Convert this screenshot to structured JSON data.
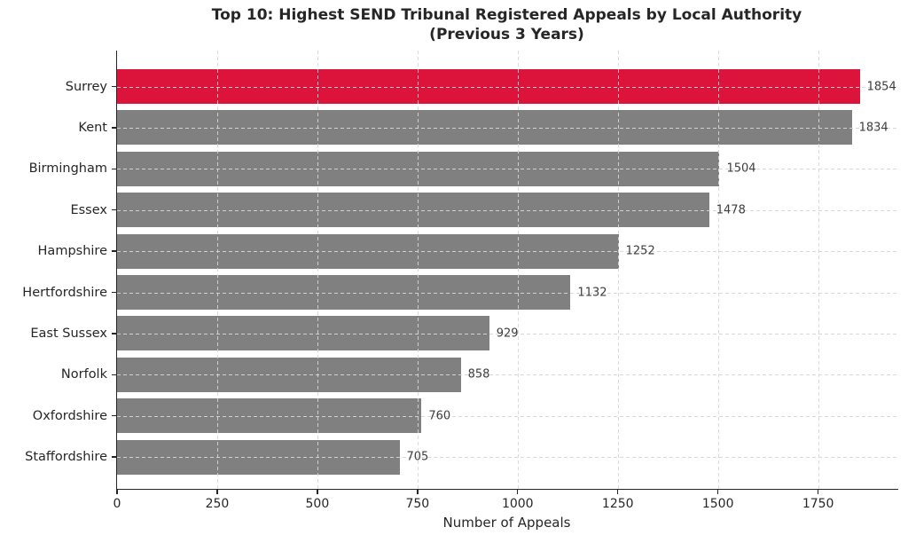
{
  "title_lines": [
    "Top 10: Highest SEND Tribunal Registered Appeals by Local Authority",
    "(Previous 3 Years)"
  ],
  "chart_data": {
    "type": "bar",
    "orientation": "horizontal",
    "title": "Top 10: Highest SEND Tribunal Registered Appeals by Local Authority (Previous 3 Years)",
    "categories": [
      "Surrey",
      "Kent",
      "Birmingham",
      "Essex",
      "Hampshire",
      "Hertfordshire",
      "East Sussex",
      "Norfolk",
      "Oxfordshire",
      "Staffordshire"
    ],
    "values": [
      1854,
      1834,
      1504,
      1478,
      1252,
      1132,
      929,
      858,
      760,
      705
    ],
    "highlight_category": "Surrey",
    "colors": {
      "highlight_bar": "#DC143C",
      "default_bar": "#808080",
      "text": "#262626",
      "grid": "#d6d6d6"
    },
    "xlabel": "Number of Appeals",
    "ylabel": "",
    "x_ticks": [
      0,
      250,
      500,
      750,
      1000,
      1250,
      1500,
      1750
    ],
    "xlim": [
      0,
      1950
    ],
    "grid": "dashed-both-axes",
    "value_labels_shown": true,
    "legend": "none"
  }
}
